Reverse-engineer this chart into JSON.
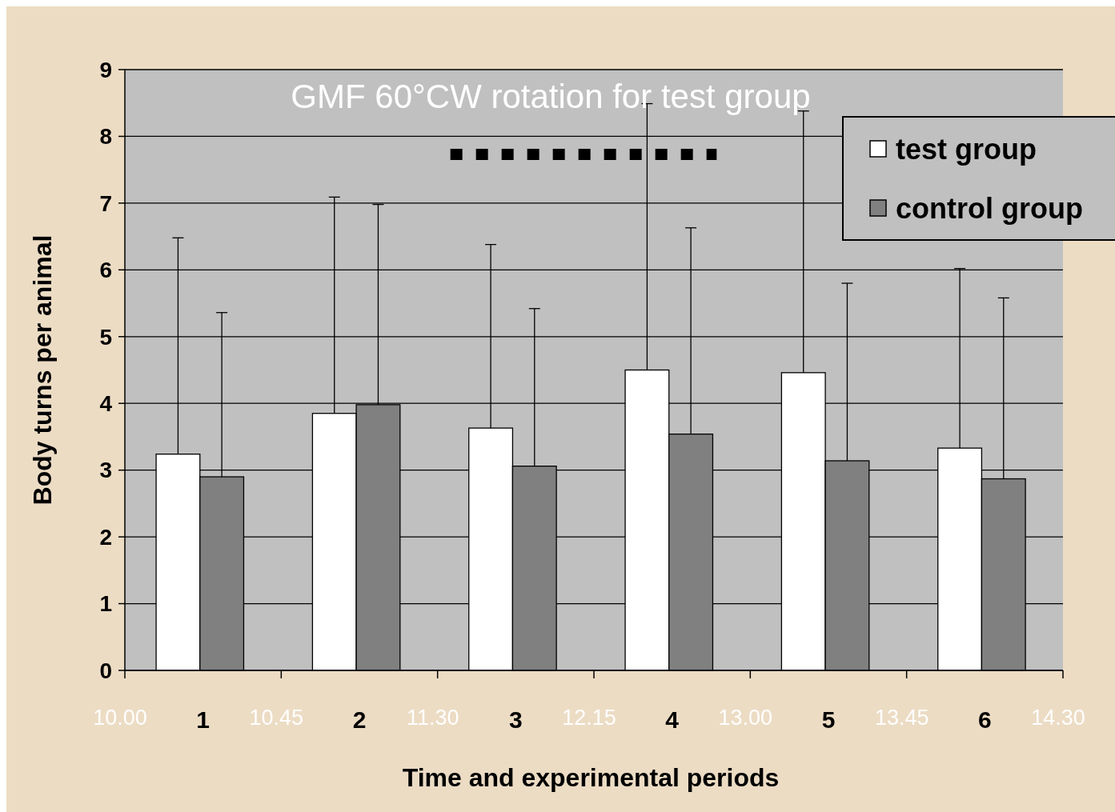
{
  "chart_data": {
    "type": "bar",
    "xlabel": "Time and experimental periods",
    "ylabel": "Body turns per animal",
    "categories": [
      "1",
      "2",
      "3",
      "4",
      "5",
      "6"
    ],
    "series": [
      {
        "name": "test group",
        "color": "#ffffff",
        "values": [
          3.24,
          3.85,
          3.63,
          4.5,
          4.46,
          3.33
        ],
        "errors": [
          3.24,
          3.24,
          2.75,
          3.99,
          3.92,
          2.69
        ]
      },
      {
        "name": "control group",
        "color": "#808080",
        "values": [
          2.9,
          3.98,
          3.06,
          3.54,
          3.14,
          2.87
        ],
        "errors": [
          2.46,
          3.0,
          2.36,
          3.09,
          2.66,
          2.71
        ]
      }
    ],
    "ylim": [
      0,
      9
    ],
    "yticks": [
      0,
      1,
      2,
      3,
      4,
      5,
      6,
      7,
      8,
      9
    ],
    "grid": "y",
    "legend": "top right",
    "annotations": [
      "GMF 60°CW rotation for test group",
      "10.00",
      "10.45",
      "11.30",
      "12.15",
      "13.00",
      "13.45",
      "14.30"
    ]
  }
}
